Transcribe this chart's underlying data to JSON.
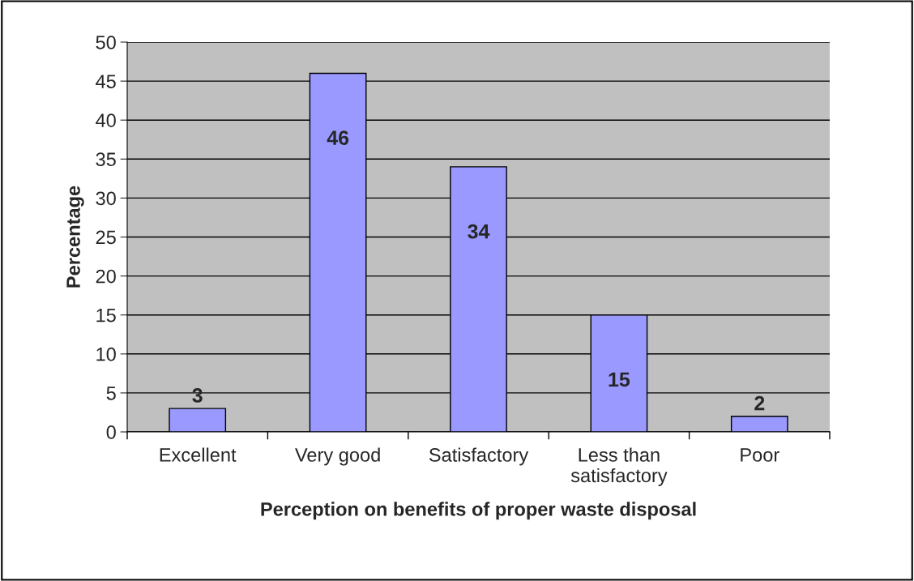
{
  "chart_data": {
    "type": "bar",
    "xlabel": "Perception on benefits of proper waste disposal",
    "ylabel": "Percentage",
    "categories": [
      "Excellent",
      "Very good",
      "Satisfactory",
      "Less than\nsatisfactory",
      "Poor"
    ],
    "values": [
      3,
      46,
      34,
      15,
      2
    ],
    "color": "#9999ff",
    "ylim": [
      0,
      50
    ],
    "yticks": [
      0,
      5,
      10,
      15,
      20,
      25,
      30,
      35,
      40,
      45,
      50
    ],
    "grid": "y",
    "data_labels": true
  }
}
